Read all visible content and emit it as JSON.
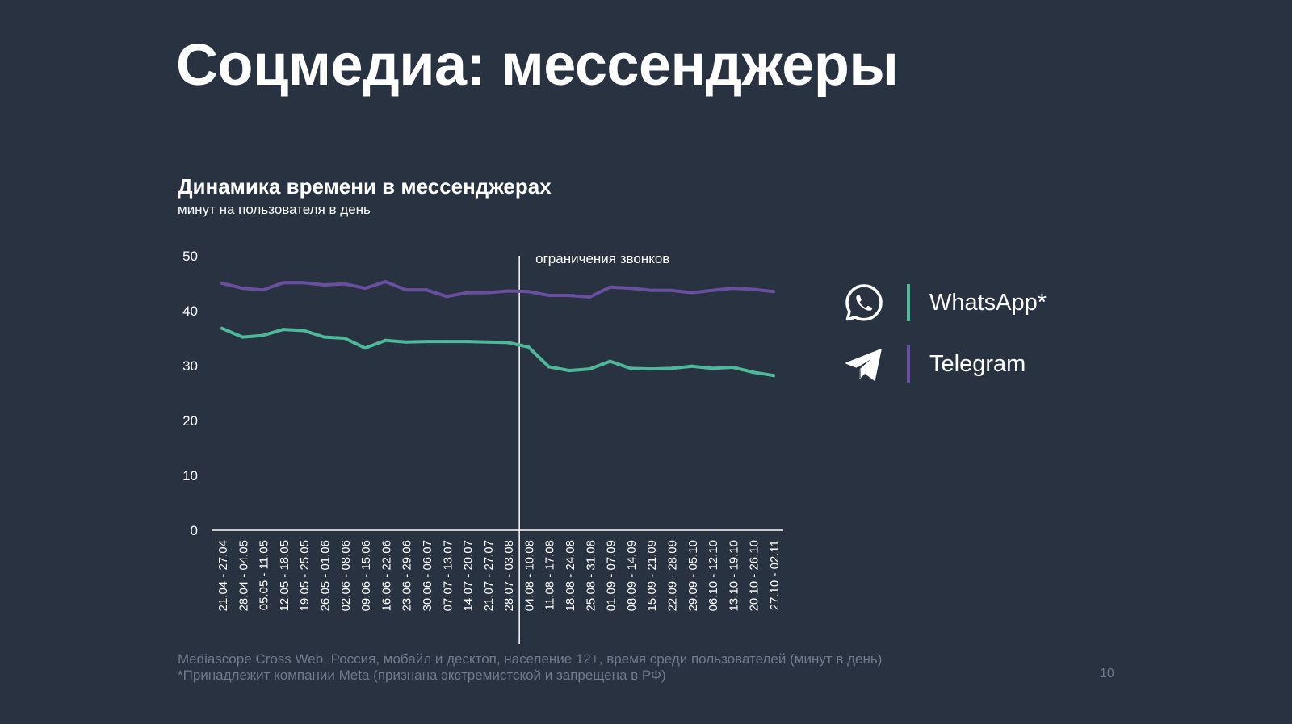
{
  "slide": {
    "title": "Соцмедиа: мессенджеры",
    "page_number": "10"
  },
  "colors": {
    "background": "#293241",
    "whatsapp": "#4fb89a",
    "telegram": "#6a4fa0",
    "text": "#ffffff",
    "muted": "#6f7a8c"
  },
  "legend": {
    "items": [
      {
        "label": "WhatsApp*",
        "icon": "whatsapp-icon",
        "color": "#4fb89a"
      },
      {
        "label": "Telegram",
        "icon": "telegram-icon",
        "color": "#6a4fa0"
      }
    ]
  },
  "chart_data": {
    "type": "line",
    "title": "Динамика времени в мессенджерах",
    "subtitle": "минут на пользователя в день",
    "ylim": [
      0,
      50
    ],
    "yticks": [
      0,
      10,
      20,
      30,
      40,
      50
    ],
    "grid": false,
    "legend_position": "right",
    "annotation": {
      "label": "ограничения звонков",
      "at_category": "28.07 - 03.08"
    },
    "categories": [
      "21.04 - 27.04",
      "28.04 - 04.05",
      "05.05 - 11.05",
      "12.05 - 18.05",
      "19.05 - 25.05",
      "26.05 - 01.06",
      "02.06 - 08.06",
      "09.06 - 15.06",
      "16.06 - 22.06",
      "23.06 - 29.06",
      "30.06 - 06.07",
      "07.07 - 13.07",
      "14.07 - 20.07",
      "21.07 - 27.07",
      "28.07 - 03.08",
      "04.08 - 10.08",
      "11.08 - 17.08",
      "18.08 - 24.08",
      "25.08 - 31.08",
      "01.09 - 07.09",
      "08.09 - 14.09",
      "15.09 - 21.09",
      "22.09 - 28.09",
      "29.09 - 05.10",
      "06.10 - 12.10",
      "13.10 - 19.10",
      "20.10 - 26.10",
      "27.10 - 02.11"
    ],
    "series": [
      {
        "name": "WhatsApp*",
        "color": "#4fb89a",
        "values": [
          36.8,
          35.2,
          35.5,
          36.6,
          36.4,
          35.2,
          35.0,
          33.2,
          34.6,
          34.3,
          34.4,
          34.4,
          34.4,
          34.3,
          34.2,
          33.4,
          29.8,
          29.1,
          29.4,
          30.8,
          29.5,
          29.4,
          29.5,
          29.9,
          29.5,
          29.7,
          28.8,
          28.2
        ]
      },
      {
        "name": "Telegram",
        "color": "#6a4fa0",
        "values": [
          45.0,
          44.1,
          43.8,
          45.1,
          45.1,
          44.7,
          44.9,
          44.1,
          45.3,
          43.8,
          43.8,
          42.6,
          43.3,
          43.3,
          43.6,
          43.5,
          42.8,
          42.8,
          42.5,
          44.3,
          44.1,
          43.7,
          43.7,
          43.3,
          43.7,
          44.1,
          43.9,
          43.5
        ]
      }
    ]
  },
  "footer": {
    "source_line1": "Mediascope Cross Web, Россия, мобайл и десктоп, население 12+, время среди пользователей (минут в день)",
    "source_line2": "*Принадлежит компании Meta (признана экстремистской и запрещена в РФ)"
  }
}
